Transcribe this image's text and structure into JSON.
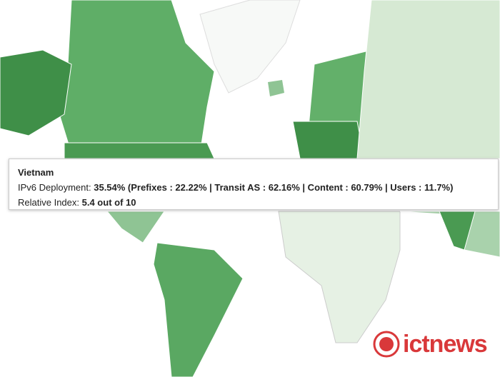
{
  "tooltip": {
    "title": "Vietnam",
    "deployment": {
      "label": "IPv6 Deployment:",
      "value": "35.54% (Prefixes : 22.22% | Transit AS : 62.16% | Content : 60.79% | Users : 11.7%)"
    },
    "relative_index": {
      "label": "Relative Index:",
      "value": "5.4 out of 10"
    }
  },
  "logo": {
    "text": "ictnews"
  }
}
